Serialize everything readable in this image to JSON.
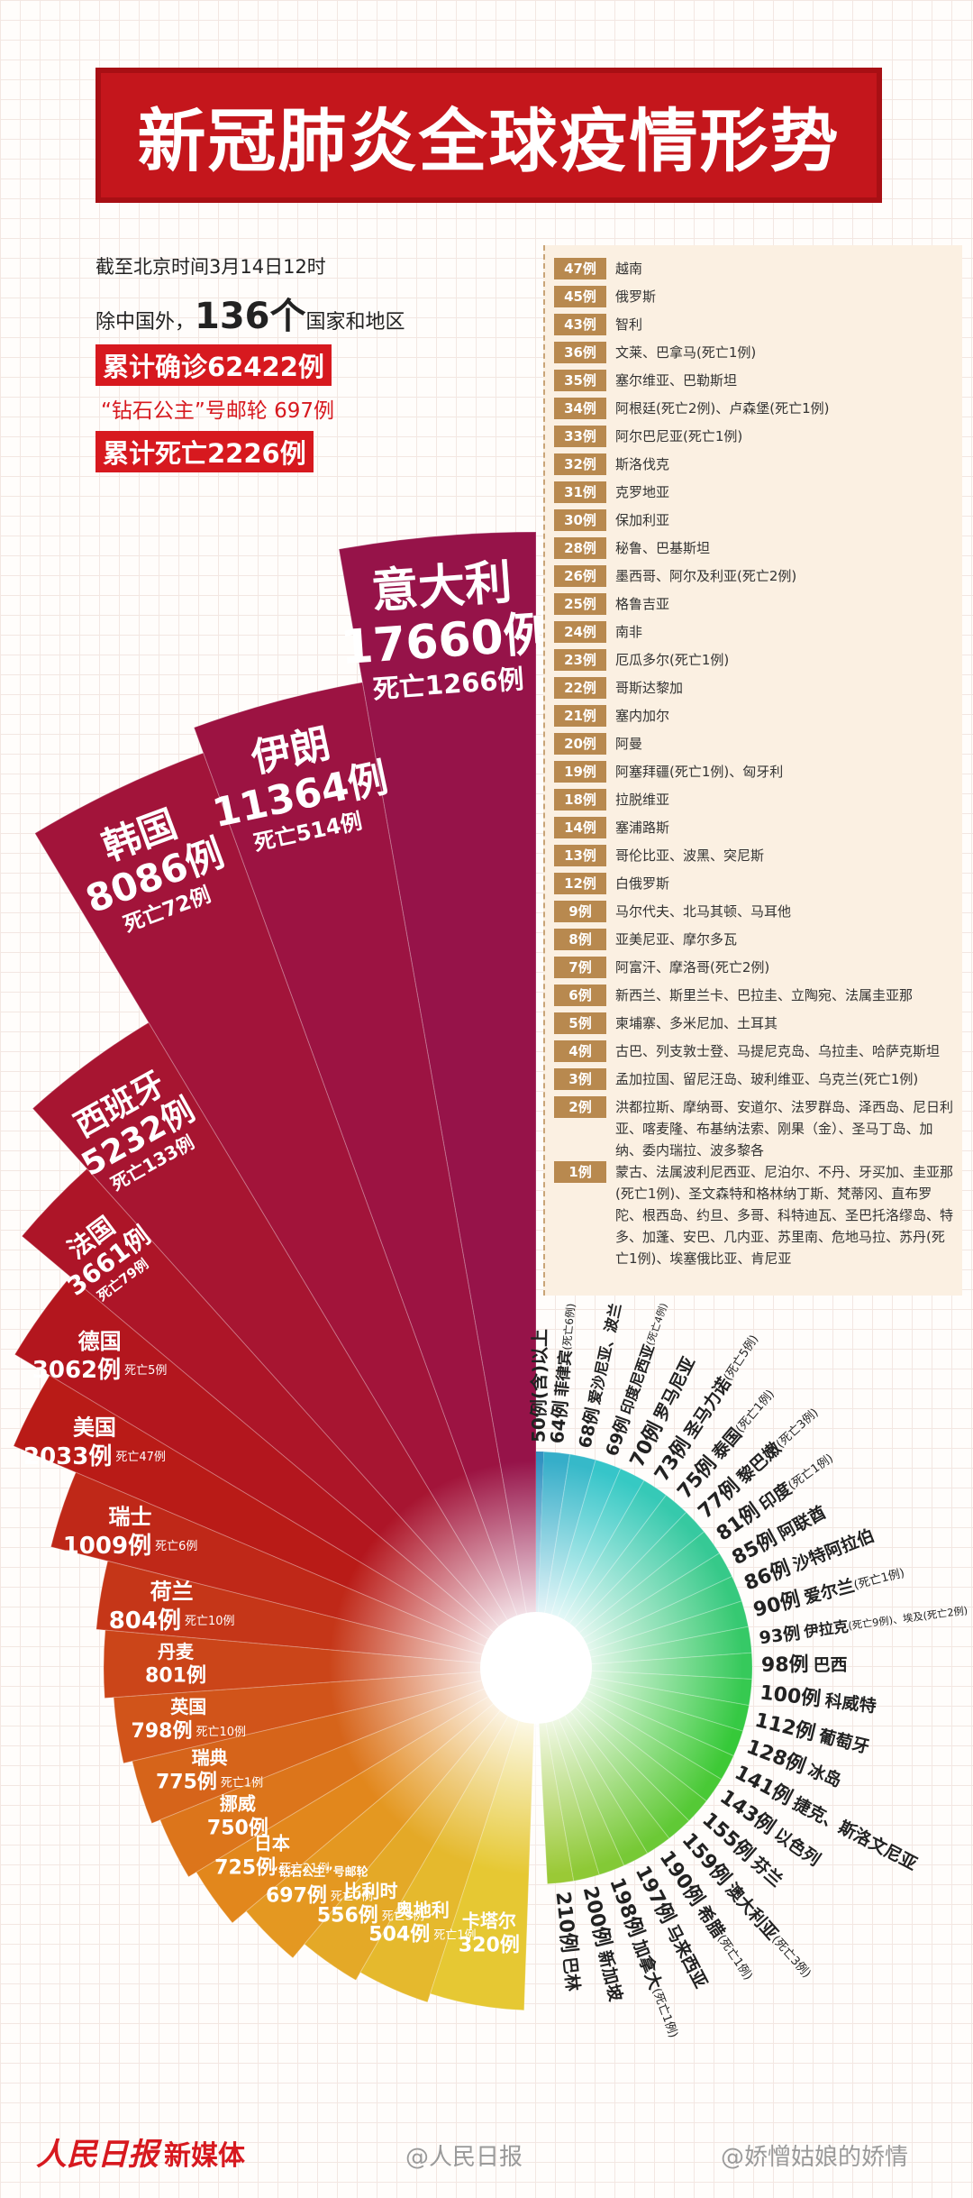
{
  "header": {
    "title": "新冠肺炎全球疫情形势"
  },
  "summary": {
    "as_of": "截至北京时间3月14日12时",
    "prefix": "除中国外，",
    "count": "136个",
    "suffix": "国家和地区",
    "confirmed": "累计确诊62422例",
    "cruise": "“钻石公主”号邮轮 697例",
    "deaths": "累计死亡2226例"
  },
  "major": [
    {
      "name": "意大利",
      "cases": "17660例",
      "deaths": "死亡1266例"
    },
    {
      "name": "伊朗",
      "cases": "11364例",
      "deaths": "死亡514例"
    },
    {
      "name": "韩国",
      "cases": "8086例",
      "deaths": "死亡72例"
    },
    {
      "name": "西班牙",
      "cases": "5232例",
      "deaths": "死亡133例"
    },
    {
      "name": "法国",
      "cases": "3661例",
      "deaths": "死亡79例"
    },
    {
      "name": "德国",
      "cases": "3062例",
      "deaths": "死亡5例"
    },
    {
      "name": "美国",
      "cases": "2033例",
      "deaths": "死亡47例"
    },
    {
      "name": "瑞士",
      "cases": "1009例",
      "deaths": "死亡6例"
    },
    {
      "name": "荷兰",
      "cases": "804例",
      "deaths": "死亡10例"
    },
    {
      "name": "丹麦",
      "cases": "801例"
    },
    {
      "name": "英国",
      "cases": "798例",
      "deaths": "死亡10例"
    },
    {
      "name": "瑞典",
      "cases": "775例",
      "deaths": "死亡1例"
    },
    {
      "name": "挪威",
      "cases": "750例"
    },
    {
      "name": "日本",
      "cases": "725例",
      "deaths": "死亡21例"
    },
    {
      "name": "“钻石公主”号邮轮",
      "cases": "697例",
      "deaths": "死亡7例"
    },
    {
      "name": "比利时",
      "cases": "556例",
      "deaths": "死亡3例"
    },
    {
      "name": "奥地利",
      "cases": "504例",
      "deaths": "死亡1例"
    },
    {
      "name": "卡塔尔",
      "cases": "320例"
    }
  ],
  "minor_title": "50例(含)以上",
  "minor": [
    {
      "count": "64例",
      "name": "菲律宾",
      "note": "(死亡6例)"
    },
    {
      "count": "68例",
      "name": "爱沙尼亚、波兰"
    },
    {
      "count": "69例",
      "name": "印度尼西亚",
      "note": "(死亡4例)"
    },
    {
      "count": "70例",
      "name": "罗马尼亚"
    },
    {
      "count": "73例",
      "name": "圣马力诺",
      "note": "(死亡5例)"
    },
    {
      "count": "75例",
      "name": "泰国",
      "note": "(死亡1例)"
    },
    {
      "count": "77例",
      "name": "黎巴嫩",
      "note": "(死亡3例)"
    },
    {
      "count": "81例",
      "name": "印度",
      "note": "(死亡1例)"
    },
    {
      "count": "85例",
      "name": "阿联酋"
    },
    {
      "count": "86例",
      "name": "沙特阿拉伯"
    },
    {
      "count": "90例",
      "name": "爱尔兰",
      "note": "(死亡1例)"
    },
    {
      "count": "93例",
      "name": "伊拉克",
      "note": "(死亡9例)、埃及(死亡2例)"
    },
    {
      "count": "98例",
      "name": "巴西"
    },
    {
      "count": "100例",
      "name": "科威特"
    },
    {
      "count": "112例",
      "name": "葡萄牙"
    },
    {
      "count": "128例",
      "name": "冰岛"
    },
    {
      "count": "141例",
      "name": "捷克、斯洛文尼亚"
    },
    {
      "count": "143例",
      "name": "以色列"
    },
    {
      "count": "155例",
      "name": "芬兰"
    },
    {
      "count": "159例",
      "name": "澳大利亚",
      "note": "(死亡3例)"
    },
    {
      "count": "190例",
      "name": "希腊",
      "note": "(死亡1例)"
    },
    {
      "count": "197例",
      "name": "马来西亚"
    },
    {
      "count": "198例",
      "name": "加拿大",
      "note": "(死亡1例)"
    },
    {
      "count": "200例",
      "name": "新加坡"
    },
    {
      "count": "210例",
      "name": "巴林"
    }
  ],
  "list": [
    {
      "count": "47例",
      "countries": "越南"
    },
    {
      "count": "45例",
      "countries": "俄罗斯"
    },
    {
      "count": "43例",
      "countries": "智利"
    },
    {
      "count": "36例",
      "countries": "文莱、巴拿马(死亡1例)"
    },
    {
      "count": "35例",
      "countries": "塞尔维亚、巴勒斯坦"
    },
    {
      "count": "34例",
      "countries": "阿根廷(死亡2例)、卢森堡(死亡1例)"
    },
    {
      "count": "33例",
      "countries": "阿尔巴尼亚(死亡1例)"
    },
    {
      "count": "32例",
      "countries": "斯洛伐克"
    },
    {
      "count": "31例",
      "countries": "克罗地亚"
    },
    {
      "count": "30例",
      "countries": "保加利亚"
    },
    {
      "count": "28例",
      "countries": "秘鲁、巴基斯坦"
    },
    {
      "count": "26例",
      "countries": "墨西哥、阿尔及利亚(死亡2例)"
    },
    {
      "count": "25例",
      "countries": "格鲁吉亚"
    },
    {
      "count": "24例",
      "countries": "南非"
    },
    {
      "count": "23例",
      "countries": "厄瓜多尔(死亡1例)"
    },
    {
      "count": "22例",
      "countries": "哥斯达黎加"
    },
    {
      "count": "21例",
      "countries": "塞内加尔"
    },
    {
      "count": "20例",
      "countries": "阿曼"
    },
    {
      "count": "19例",
      "countries": "阿塞拜疆(死亡1例)、匈牙利"
    },
    {
      "count": "18例",
      "countries": "拉脱维亚"
    },
    {
      "count": "14例",
      "countries": "塞浦路斯"
    },
    {
      "count": "13例",
      "countries": "哥伦比亚、波黑、突尼斯"
    },
    {
      "count": "12例",
      "countries": "白俄罗斯"
    },
    {
      "count": "9例",
      "countries": "马尔代夫、北马其顿、马耳他"
    },
    {
      "count": "8例",
      "countries": "亚美尼亚、摩尔多瓦"
    },
    {
      "count": "7例",
      "countries": "阿富汗、摩洛哥(死亡2例)"
    },
    {
      "count": "6例",
      "countries": "新西兰、斯里兰卡、巴拉圭、立陶宛、法属圭亚那"
    },
    {
      "count": "5例",
      "countries": "柬埔寨、多米尼加、土耳其"
    },
    {
      "count": "4例",
      "countries": "古巴、列支敦士登、马提尼克岛、乌拉圭、哈萨克斯坦"
    },
    {
      "count": "3例",
      "countries": "孟加拉国、留尼汪岛、玻利维亚、乌克兰(死亡1例)"
    },
    {
      "count": "2例",
      "countries": "洪都拉斯、摩纳哥、安道尔、法罗群岛、泽西岛、尼日利亚、喀麦隆、布基纳法索、刚果（金）、圣马丁岛、加纳、委内瑞拉、波多黎各"
    },
    {
      "count": "1例",
      "countries": "蒙古、法属波利尼西亚、尼泊尔、不丹、牙买加、圭亚那(死亡1例)、圣文森特和格林纳丁斯、梵蒂冈、直布罗陀、根西岛、约旦、多哥、科特迪瓦、圣巴托洛缪岛、特多、加蓬、安巴、几内亚、苏里南、危地马拉、苏丹(死亡1例)、埃塞俄比亚、肯尼亚"
    }
  ],
  "footer": {
    "logo": "人民日报",
    "brand": "新媒体",
    "watermark1": "@人民日报",
    "watermark2": "@娇憎姑娘的娇情"
  }
}
